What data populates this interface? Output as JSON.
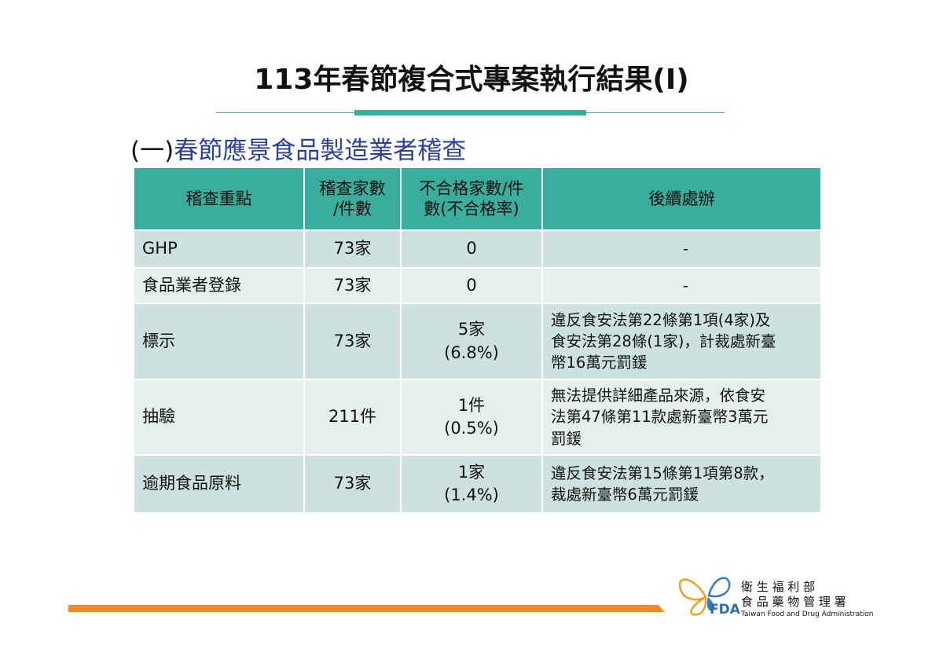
{
  "header": {
    "title": "113年春節複合式專案執行結果(Ⅰ)"
  },
  "section": {
    "prefix": "(一)",
    "title": "春節應景食品製造業者稽查"
  },
  "table": {
    "columns": [
      [
        "稽查重點"
      ],
      [
        "稽查家數",
        "/件數"
      ],
      [
        "不合格家數/件",
        "數(不合格率)"
      ],
      [
        "後續處辦"
      ]
    ],
    "rows": [
      [
        [
          "GHP"
        ],
        [
          "73家"
        ],
        [
          "0"
        ],
        [
          "-"
        ]
      ],
      [
        [
          "食品業者登錄"
        ],
        [
          "73家"
        ],
        [
          "0"
        ],
        [
          "-"
        ]
      ],
      [
        [
          "標示"
        ],
        [
          "73家"
        ],
        [
          "5家",
          "(6.8%)"
        ],
        [
          "違反食安法第22條第1項(4家)及",
          "食安法第28條(1家)，計裁處新臺",
          "幣16萬元罰鍰"
        ]
      ],
      [
        [
          "抽驗"
        ],
        [
          "211件"
        ],
        [
          "1件",
          "(0.5%)"
        ],
        [
          "無法提供詳細產品來源，依食安",
          "法第47條第11款處新臺幣3萬元",
          "罰鍰"
        ]
      ],
      [
        [
          "逾期食品原料"
        ],
        [
          "73家"
        ],
        [
          "1家",
          "(1.4%)"
        ],
        [
          "違反食安法第15條第1項第8款，",
          "裁處新臺幣6萬元罰鍰"
        ]
      ]
    ]
  },
  "logo": {
    "ministry": "衛 生 福 利 部",
    "agency": "食 品 藥 物 管 理 署",
    "abbr": "FDA",
    "english": "Taiwan Food and Drug Administration"
  }
}
